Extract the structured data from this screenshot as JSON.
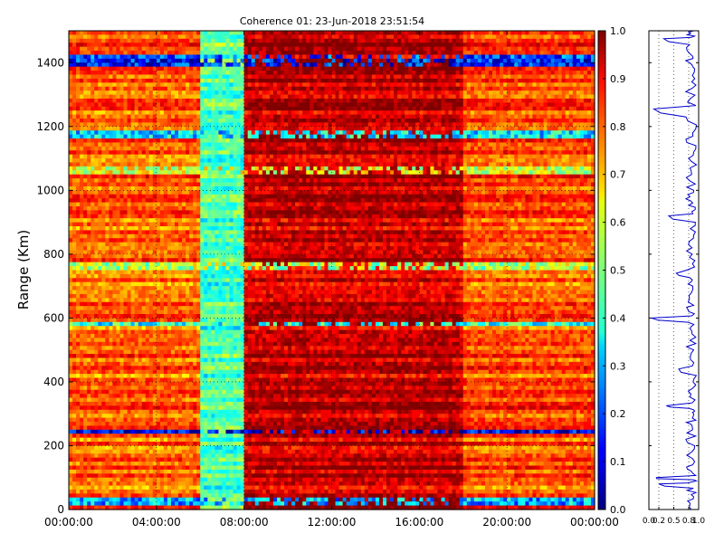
{
  "chart_data": [
    {
      "type": "heatmap",
      "title": "Coherence 01: 23-Jun-2018 23:51:54",
      "xlabel": "",
      "ylabel": "Range (Km)",
      "x_tick_labels": [
        "00:00:00",
        "04:00:00",
        "08:00:00",
        "12:00:00",
        "16:00:00",
        "20:00:00",
        "00:00:00"
      ],
      "x_range_hours": [
        0,
        24
      ],
      "y_tick_labels": [
        "0",
        "200",
        "400",
        "600",
        "800",
        "1000",
        "1200",
        "1400"
      ],
      "ylim": [
        0,
        1500
      ],
      "colorbar": {
        "colormap": "jet",
        "range": [
          0,
          1
        ],
        "tick_labels": [
          "0.0",
          "0.1",
          "0.2",
          "0.3",
          "0.4",
          "0.5",
          "0.6",
          "0.7",
          "0.8",
          "0.9",
          "1.0"
        ]
      },
      "time_segments_hours": [
        {
          "start": 0,
          "end": 6,
          "mean_coherence": 0.78
        },
        {
          "start": 6,
          "end": 8,
          "mean_coherence": 0.45
        },
        {
          "start": 8,
          "end": 18,
          "mean_coherence": 0.93
        },
        {
          "start": 18,
          "end": 24,
          "mean_coherence": 0.8
        }
      ],
      "low_coherence_ranges_km": [
        {
          "range": 1475,
          "value": 0.3
        },
        {
          "range": 1255,
          "value": 0.1
        },
        {
          "range": 920,
          "value": 0.4
        },
        {
          "range": 740,
          "value": 0.55
        },
        {
          "range": 440,
          "value": 0.6
        },
        {
          "range": 325,
          "value": 0.35
        },
        {
          "range": 100,
          "value": 0.15
        },
        {
          "range": 80,
          "value": 0.2
        }
      ],
      "grid": true
    },
    {
      "type": "line",
      "xlim": [
        0,
        1
      ],
      "x_tick_labels": [
        "0.0",
        "0.2",
        "0.5",
        "0.8",
        "1.0"
      ],
      "ylim": [
        0,
        1500
      ],
      "grid": true,
      "line_color": "#0000cc",
      "y_km": [
        0,
        40,
        80,
        100,
        140,
        200,
        260,
        300,
        325,
        380,
        440,
        500,
        560,
        600,
        640,
        700,
        740,
        800,
        860,
        920,
        960,
        1000,
        1060,
        1120,
        1180,
        1255,
        1320,
        1380,
        1420,
        1475,
        1500
      ],
      "coherence": [
        0.85,
        0.9,
        0.2,
        0.15,
        0.88,
        0.92,
        0.87,
        0.9,
        0.35,
        0.88,
        0.6,
        0.9,
        0.86,
        0.05,
        0.9,
        0.88,
        0.55,
        0.87,
        0.9,
        0.4,
        0.88,
        0.9,
        0.85,
        0.9,
        0.88,
        0.1,
        0.87,
        0.92,
        0.88,
        0.3,
        0.9
      ]
    }
  ]
}
